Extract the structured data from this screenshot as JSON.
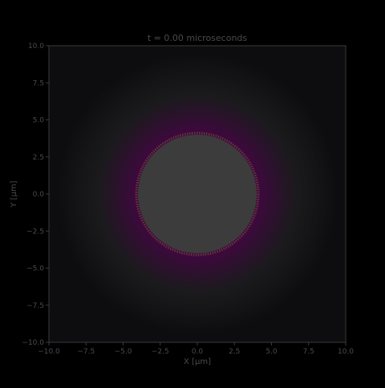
{
  "chart_data": {
    "type": "heatmap",
    "title": "t = 0.00 microseconds",
    "xlabel": "X [μm]",
    "ylabel": "Y [μm]",
    "xlim": [
      -10.0,
      10.0
    ],
    "ylim": [
      -10.0,
      10.0
    ],
    "xticks": [
      "−10.0",
      "−7.5",
      "−5.0",
      "−2.5",
      "0.0",
      "2.5",
      "5.0",
      "7.5",
      "10.0"
    ],
    "yticks": [
      "10.0",
      "7.5",
      "5.0",
      "2.5",
      "0.0",
      "−2.5",
      "−5.0",
      "−7.5",
      "−10.0"
    ],
    "xtick_values": [
      -10.0,
      -7.5,
      -5.0,
      -2.5,
      0.0,
      2.5,
      5.0,
      7.5,
      10.0
    ],
    "ytick_values": [
      10.0,
      7.5,
      5.0,
      2.5,
      0.0,
      -2.5,
      -5.0,
      -7.5,
      -10.0
    ],
    "grid": false,
    "field": {
      "center": [
        0.0,
        0.0
      ],
      "core_radius": 4.0,
      "halo_radius": 9.5,
      "colors": {
        "background": "#000000",
        "axes_face": "#0d0c0f",
        "core": "#3c3c3c",
        "halo": "#3d0a3d",
        "edge": "#8a5a3a",
        "outer": "#1c1c1e",
        "text": "#4a4a4a",
        "spine": "#3a3a3a"
      }
    }
  }
}
